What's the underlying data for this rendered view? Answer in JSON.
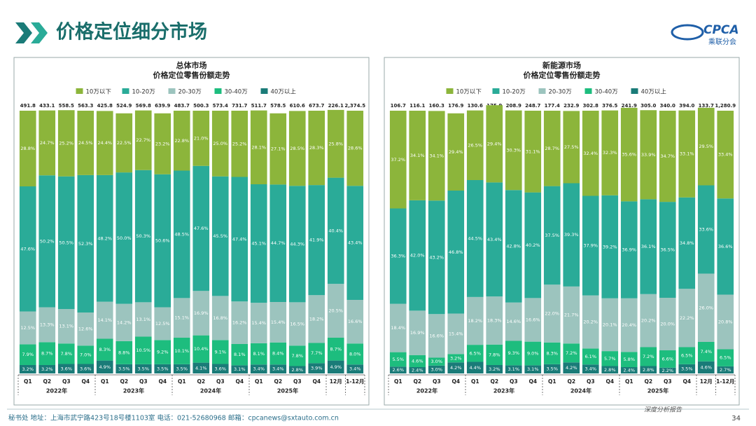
{
  "header": {
    "title": "价格定位细分市场",
    "logo_text": "CPCA",
    "logo_subtext": "乘联分会"
  },
  "chart_data": [
    {
      "type": "bar",
      "stacked": true,
      "title": "总体市场",
      "subtitle": "价格定位零售份额走势",
      "categories": [
        "Q1",
        "Q2",
        "Q3",
        "Q4",
        "Q1",
        "Q2",
        "Q3",
        "Q4",
        "Q1",
        "Q2",
        "Q3",
        "Q4",
        "Q1",
        "Q2",
        "Q3",
        "Q4",
        "12月",
        "1-12月"
      ],
      "category_groups": [
        {
          "label": "2022年",
          "count": 4
        },
        {
          "label": "2023年",
          "count": 4
        },
        {
          "label": "2024年",
          "count": 4
        },
        {
          "label": "2025年",
          "count": 4
        },
        {
          "label": null,
          "count": 1
        },
        {
          "label": null,
          "count": 1
        }
      ],
      "totals": {
        "values": [
          491.8,
          433.1,
          558.5,
          563.3,
          425.8,
          524.9,
          569.8,
          639.9,
          483.7,
          500.3,
          573.4,
          731.7,
          511.7,
          578.5,
          610.6,
          673.7,
          226.1,
          2374.5
        ],
        "value_labels": [
          "491.8",
          "433.1",
          "558.5",
          "563.3",
          "425.8",
          "524.9",
          "569.8",
          "639.9",
          "483.7",
          "500.3",
          "573.4",
          "731.7",
          "511.7",
          "578.5",
          "610.6",
          "673.7",
          "226.1",
          "2,374.5"
        ]
      },
      "ylim": [
        0,
        100
      ],
      "series": [
        {
          "name": "10万以下",
          "color": "#8cb53b",
          "values": [
            28.8,
            24.7,
            25.2,
            24.5,
            24.4,
            22.5,
            22.7,
            23.2,
            22.8,
            21.0,
            25.0,
            25.2,
            28.1,
            27.1,
            28.5,
            28.3,
            25.8,
            28.6
          ],
          "value_labels": [
            "28.8%",
            "24.7%",
            "25.2%",
            "24.5%",
            "24.4%",
            "22.5%",
            "22.7%",
            "23.2%",
            "22.8%",
            "21.0%",
            "25.0%",
            "25.2%",
            "28.1%",
            "27.1%",
            "28.5%",
            "28.3%",
            "25.8%",
            "28.6%"
          ]
        },
        {
          "name": "10-20万",
          "color": "#2aab98",
          "values": [
            47.6,
            50.2,
            50.5,
            52.3,
            48.2,
            50.0,
            50.3,
            50.6,
            48.5,
            47.6,
            45.5,
            47.4,
            45.1,
            44.7,
            44.3,
            41.9,
            40.4,
            43.4
          ],
          "value_labels": [
            "47.6%",
            "50.2%",
            "50.5%",
            "52.3%",
            "48.2%",
            "50.0%",
            "50.3%",
            "50.6%",
            "48.5%",
            "47.6%",
            "45.5%",
            "47.4%",
            "45.1%",
            "44.7%",
            "44.3%",
            "41.9%",
            "40.4%",
            "43.4%"
          ]
        },
        {
          "name": "20-30万",
          "color": "#9cc4be",
          "values": [
            12.5,
            13.3,
            13.1,
            12.6,
            14.1,
            14.2,
            13.1,
            12.5,
            15.1,
            16.9,
            16.8,
            16.2,
            15.4,
            15.4,
            16.5,
            18.2,
            20.5,
            16.6
          ],
          "value_labels": [
            "12.5%",
            "13.3%",
            "13.1%",
            "12.6%",
            "14.1%",
            "14.2%",
            "13.1%",
            "12.5%",
            "15.1%",
            "16.9%",
            "16.8%",
            "16.2%",
            "15.4%",
            "15.4%",
            "16.5%",
            "18.2%",
            "20.5%",
            "16.6%"
          ]
        },
        {
          "name": "30-40万",
          "color": "#1dbd7e",
          "values": [
            7.9,
            8.7,
            7.8,
            7.0,
            8.3,
            8.8,
            10.5,
            9.2,
            10.1,
            10.4,
            9.1,
            8.1,
            8.1,
            8.4,
            7.8,
            7.7,
            8.7,
            8.0
          ],
          "value_labels": [
            "7.9%",
            "8.7%",
            "7.8%",
            "7.0%",
            "8.3%",
            "8.8%",
            "10.5%",
            "9.2%",
            "10.1%",
            "10.4%",
            "9.1%",
            "8.1%",
            "8.1%",
            "8.4%",
            "7.8%",
            "7.7%",
            "8.7%",
            "8.0%"
          ]
        },
        {
          "name": "40万以上",
          "color": "#1a7b78",
          "values": [
            3.2,
            3.2,
            3.6,
            3.6,
            4.9,
            3.5,
            3.5,
            3.5,
            3.5,
            4.1,
            3.6,
            3.1,
            3.4,
            3.4,
            2.8,
            3.9,
            4.9,
            3.4
          ],
          "value_labels": [
            "3.2%",
            "3.2%",
            "3.6%",
            "3.6%",
            "4.9%",
            "3.5%",
            "3.5%",
            "3.5%",
            "3.5%",
            "4.1%",
            "3.6%",
            "3.1%",
            "3.4%",
            "3.4%",
            "2.8%",
            "3.9%",
            "4.9%",
            "3.4%"
          ]
        }
      ]
    },
    {
      "type": "bar",
      "stacked": true,
      "title": "新能源市场",
      "subtitle": "价格定位零售份额走势",
      "categories": [
        "Q1",
        "Q2",
        "Q3",
        "Q4",
        "Q1",
        "Q2",
        "Q3",
        "Q4",
        "Q1",
        "Q2",
        "Q3",
        "Q4",
        "Q1",
        "Q2",
        "Q3",
        "Q4",
        "12月",
        "1-12月"
      ],
      "category_groups": [
        {
          "label": "2022年",
          "count": 4
        },
        {
          "label": "2023年",
          "count": 4
        },
        {
          "label": "2024年",
          "count": 4
        },
        {
          "label": "2025年",
          "count": 4
        },
        {
          "label": null,
          "count": 1
        },
        {
          "label": null,
          "count": 1
        }
      ],
      "totals": {
        "values": [
          106.7,
          116.1,
          160.3,
          176.9,
          130.6,
          175.9,
          208.9,
          248.7,
          177.4,
          232.9,
          302.8,
          376.5,
          241.9,
          305.0,
          340.0,
          394.0,
          133.7,
          1280.9
        ],
        "value_labels": [
          "106.7",
          "116.1",
          "160.3",
          "176.9",
          "130.6",
          "175.9",
          "208.9",
          "248.7",
          "177.4",
          "232.9",
          "302.8",
          "376.5",
          "241.9",
          "305.0",
          "340.0",
          "394.0",
          "133.7",
          "1,280.9"
        ]
      },
      "ylim": [
        0,
        100
      ],
      "series": [
        {
          "name": "10万以下",
          "color": "#8cb53b",
          "values": [
            37.2,
            34.1,
            34.1,
            29.4,
            26.5,
            29.4,
            30.3,
            31.1,
            28.7,
            27.5,
            32.4,
            32.3,
            35.6,
            33.9,
            34.7,
            33.1,
            29.5,
            33.4
          ],
          "value_labels": [
            "37.2%",
            "34.1%",
            "34.1%",
            "29.4%",
            "26.5%",
            "29.4%",
            "30.3%",
            "31.1%",
            "28.7%",
            "27.5%",
            "32.4%",
            "32.3%",
            "35.6%",
            "33.9%",
            "34.7%",
            "33.1%",
            "29.5%",
            "33.4%"
          ]
        },
        {
          "name": "10-20万",
          "color": "#2aab98",
          "values": [
            36.3,
            42.0,
            43.2,
            46.8,
            44.5,
            43.4,
            42.8,
            40.2,
            37.5,
            39.3,
            37.9,
            39.2,
            36.9,
            36.1,
            36.5,
            34.8,
            33.6,
            36.6
          ],
          "value_labels": [
            "36.3%",
            "42.0%",
            "43.2%",
            "46.8%",
            "44.5%",
            "43.4%",
            "42.8%",
            "40.2%",
            "37.5%",
            "39.3%",
            "37.9%",
            "39.2%",
            "36.9%",
            "36.1%",
            "36.5%",
            "34.8%",
            "33.6%",
            "36.6%"
          ]
        },
        {
          "name": "20-30万",
          "color": "#9cc4be",
          "values": [
            18.4,
            16.9,
            16.6,
            15.4,
            18.2,
            18.3,
            14.6,
            16.6,
            22.0,
            21.7,
            20.2,
            20.1,
            20.4,
            20.2,
            20.0,
            22.2,
            26.0,
            20.8
          ],
          "value_labels": [
            "18.4%",
            "16.9%",
            "16.6%",
            "15.4%",
            "18.2%",
            "18.3%",
            "14.6%",
            "16.6%",
            "22.0%",
            "21.7%",
            "20.2%",
            "20.1%",
            "20.4%",
            "20.2%",
            "20.0%",
            "22.2%",
            "26.0%",
            "20.8%"
          ]
        },
        {
          "name": "30-40万",
          "color": "#1dbd7e",
          "values": [
            5.5,
            4.6,
            3.0,
            3.2,
            6.5,
            7.8,
            9.3,
            9.0,
            8.3,
            7.2,
            6.1,
            5.7,
            5.8,
            7.2,
            6.6,
            6.5,
            7.4,
            6.5
          ],
          "value_labels": [
            "5.5%",
            "4.6%",
            "3.0%",
            "3.2%",
            "6.5%",
            "7.8%",
            "9.3%",
            "9.0%",
            "8.3%",
            "7.2%",
            "6.1%",
            "5.7%",
            "5.8%",
            "7.2%",
            "6.6%",
            "6.5%",
            "7.4%",
            "6.5%"
          ]
        },
        {
          "name": "40万以上",
          "color": "#1a7b78",
          "values": [
            2.6,
            2.4,
            3.0,
            4.2,
            4.4,
            3.2,
            3.1,
            3.1,
            3.5,
            4.2,
            3.4,
            2.8,
            2.4,
            2.8,
            2.2,
            3.5,
            4.6,
            2.7
          ],
          "value_labels": [
            "2.6%",
            "2.4%",
            "3.0%",
            "4.2%",
            "4.4%",
            "3.2%",
            "3.1%",
            "3.1%",
            "3.5%",
            "4.2%",
            "3.4%",
            "2.8%",
            "2.4%",
            "2.8%",
            "2.2%",
            "3.5%",
            "4.6%",
            "2.7%"
          ]
        }
      ]
    }
  ],
  "footer": {
    "address": "秘书处   地址：上海市武宁路423号18号楼1103室   电话：021-52680968   邮箱：cpcanews@sxtauto.com.cn",
    "tag": "深度分析报告",
    "page": "34"
  }
}
